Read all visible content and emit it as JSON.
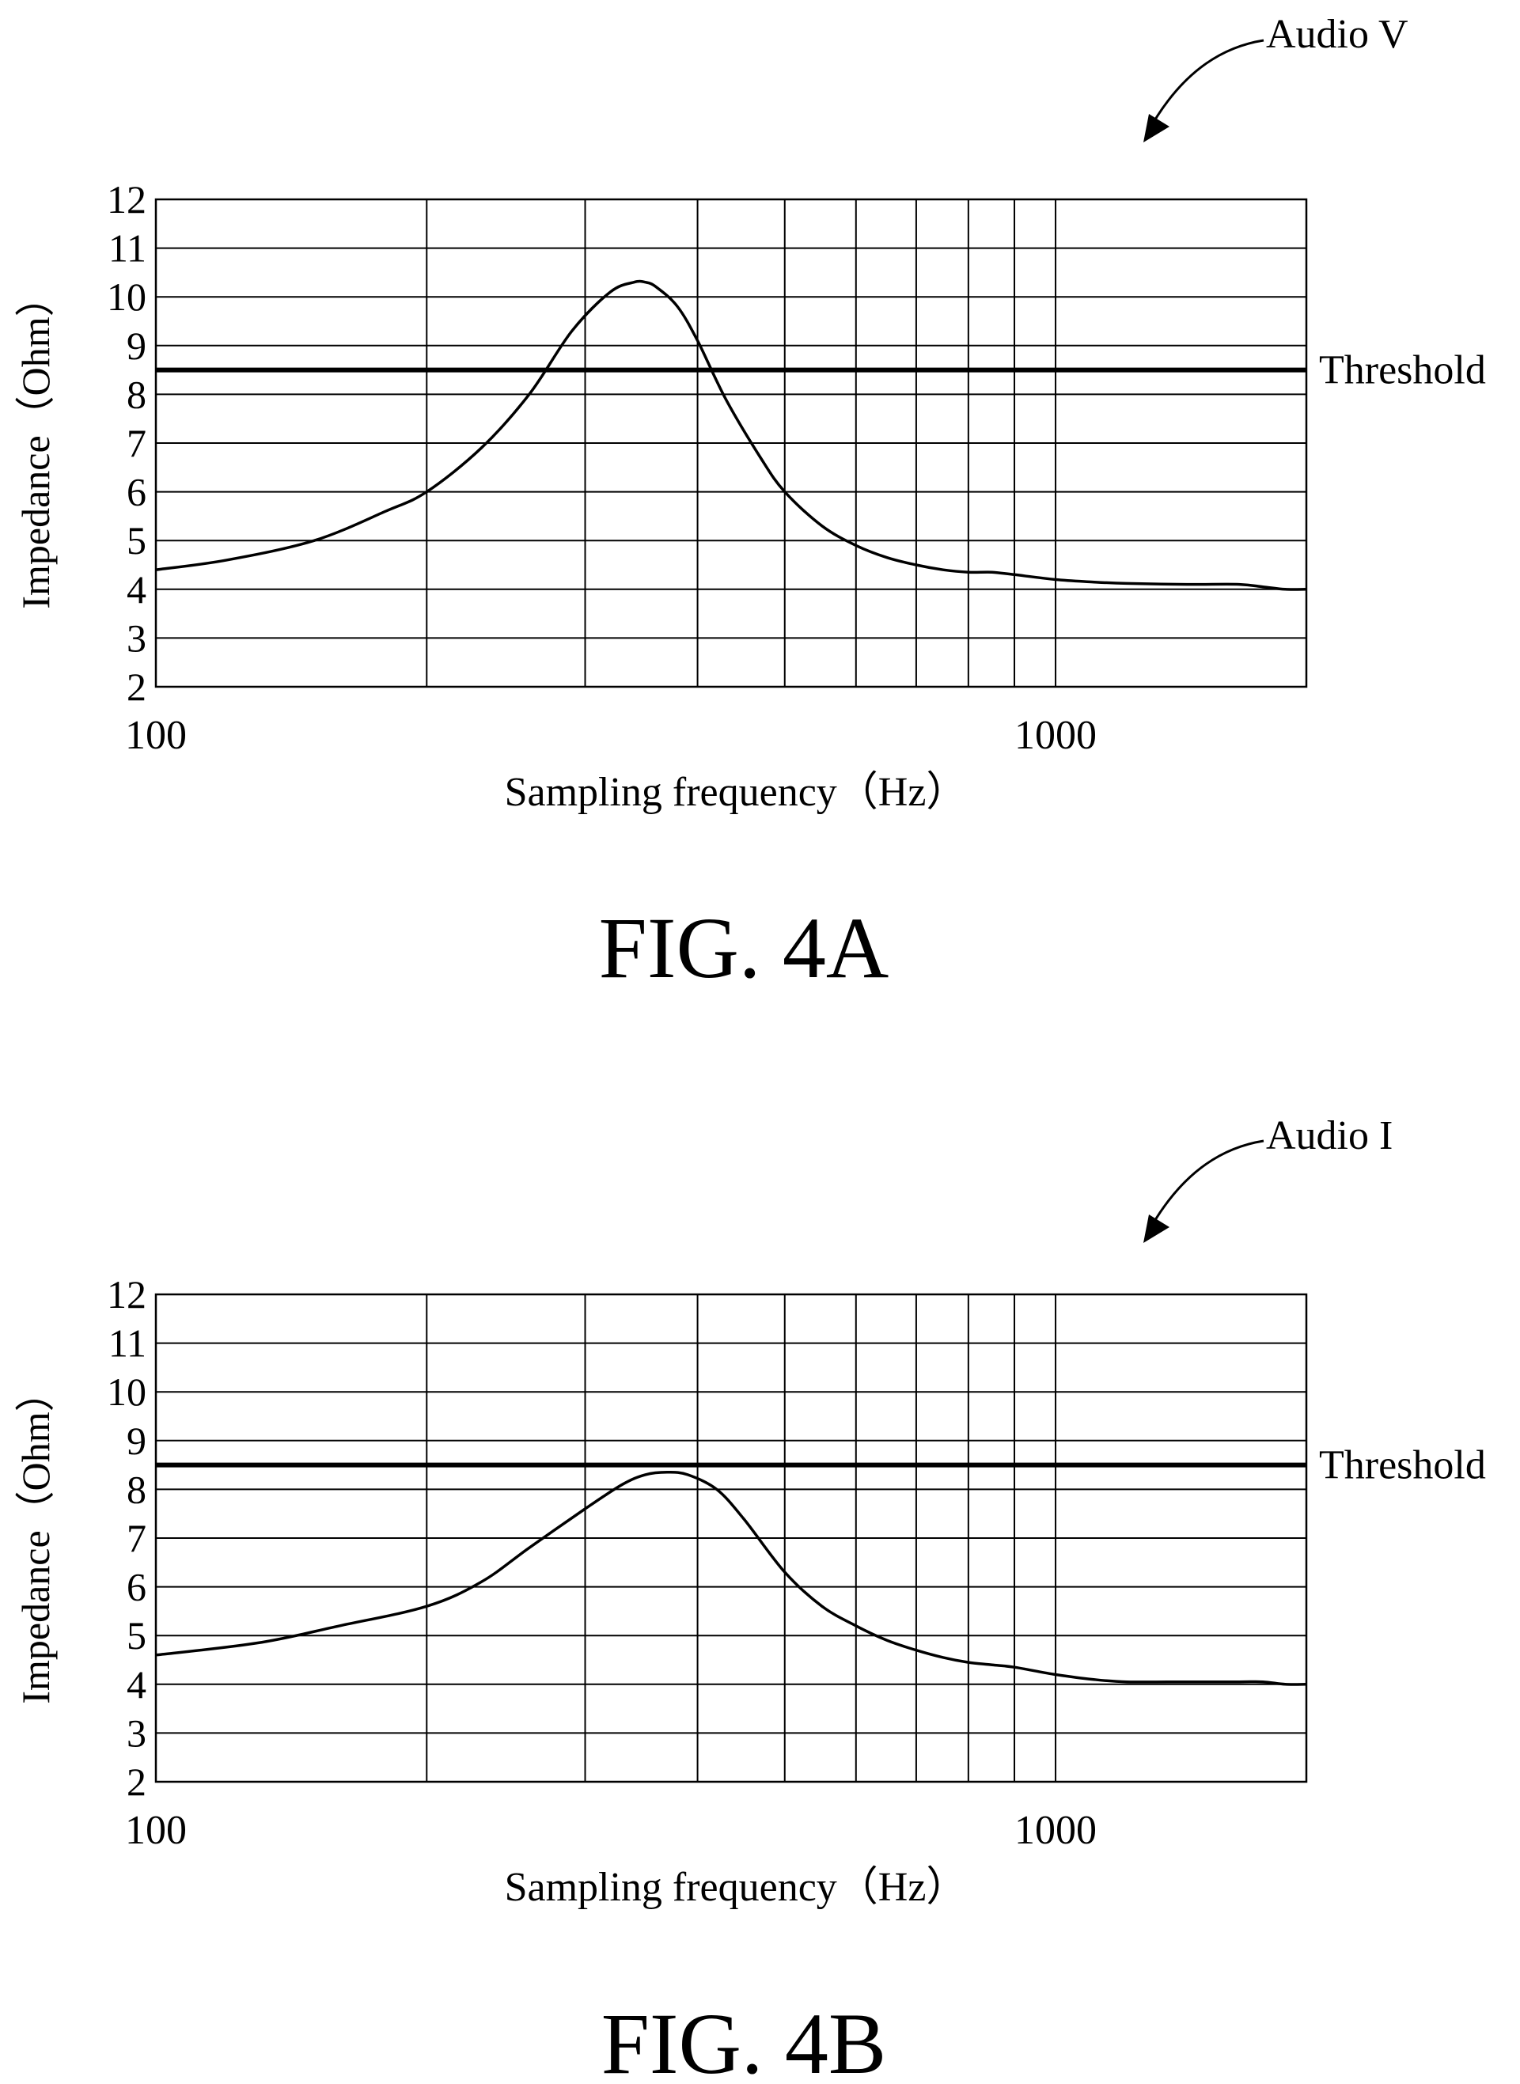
{
  "chart_data": [
    {
      "type": "line",
      "figure_label": "FIG. 4A",
      "callout_label": "Audio V",
      "xlabel": "Sampling frequency（Hz）",
      "ylabel": "Impedance（Ohm）",
      "x_scale": "log",
      "xlim": [
        100,
        1900
      ],
      "ylim": [
        2,
        12
      ],
      "x_gridlines": [
        100,
        200,
        300,
        400,
        500,
        600,
        700,
        800,
        900,
        1000,
        2000
      ],
      "x_tick_labels": [
        {
          "value": 100,
          "label": "100"
        },
        {
          "value": 1000,
          "label": "1000"
        }
      ],
      "y_ticks": [
        2,
        3,
        4,
        5,
        6,
        7,
        8,
        9,
        10,
        11,
        12
      ],
      "grid": true,
      "threshold": {
        "label": "Threshold",
        "value": 8.5
      },
      "series": [
        {
          "x": [
            100,
            120,
            150,
            180,
            200,
            230,
            260,
            290,
            320,
            340,
            350,
            360,
            380,
            400,
            430,
            470,
            500,
            550,
            600,
            650,
            700,
            750,
            800,
            850,
            900,
            1000,
            1100,
            1200,
            1400,
            1600,
            1700,
            1800,
            1900
          ],
          "y": [
            4.4,
            4.6,
            5.0,
            5.6,
            6.0,
            6.9,
            8.0,
            9.3,
            10.1,
            10.3,
            10.3,
            10.2,
            9.8,
            9.1,
            7.9,
            6.7,
            6.0,
            5.3,
            4.9,
            4.65,
            4.5,
            4.4,
            4.35,
            4.35,
            4.3,
            4.2,
            4.15,
            4.12,
            4.1,
            4.1,
            4.05,
            4.0,
            4.0
          ]
        }
      ]
    },
    {
      "type": "line",
      "figure_label": "FIG. 4B",
      "callout_label": "Audio I",
      "xlabel": "Sampling frequency（Hz）",
      "ylabel": "Impedance（Ohm）",
      "x_scale": "log",
      "xlim": [
        100,
        1900
      ],
      "ylim": [
        2,
        12
      ],
      "x_gridlines": [
        100,
        200,
        300,
        400,
        500,
        600,
        700,
        800,
        900,
        1000,
        2000
      ],
      "x_tick_labels": [
        {
          "value": 100,
          "label": "100"
        },
        {
          "value": 1000,
          "label": "1000"
        }
      ],
      "y_ticks": [
        2,
        3,
        4,
        5,
        6,
        7,
        8,
        9,
        10,
        11,
        12
      ],
      "grid": true,
      "threshold": {
        "label": "Threshold",
        "value": 8.5
      },
      "series": [
        {
          "x": [
            100,
            130,
            160,
            200,
            230,
            260,
            300,
            330,
            350,
            370,
            390,
            420,
            450,
            500,
            550,
            600,
            650,
            700,
            750,
            800,
            850,
            900,
            1000,
            1100,
            1200,
            1400,
            1600,
            1700,
            1800,
            1900
          ],
          "y": [
            4.6,
            4.85,
            5.2,
            5.6,
            6.1,
            6.8,
            7.6,
            8.1,
            8.3,
            8.35,
            8.3,
            8.0,
            7.4,
            6.3,
            5.6,
            5.2,
            4.9,
            4.7,
            4.55,
            4.45,
            4.4,
            4.35,
            4.2,
            4.1,
            4.05,
            4.05,
            4.05,
            4.05,
            4.0,
            4.0
          ]
        }
      ]
    }
  ]
}
